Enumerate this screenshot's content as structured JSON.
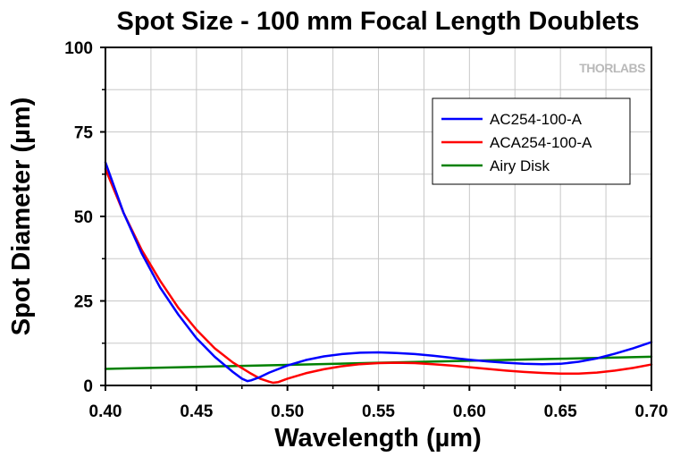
{
  "chart_data": {
    "type": "line",
    "title": "Spot Size - 100 mm Focal Length Doublets",
    "xlabel": "Wavelength (µm)",
    "ylabel": "Spot Diameter (µm)",
    "xlim": [
      0.4,
      0.7
    ],
    "ylim": [
      0,
      100
    ],
    "xticks": [
      "0.40",
      "0.45",
      "0.50",
      "0.55",
      "0.60",
      "0.65",
      "0.70"
    ],
    "yticks": [
      "0",
      "25",
      "50",
      "75",
      "100"
    ],
    "grid": true,
    "legend_position": "top-right",
    "watermark": "THORLABS",
    "series": [
      {
        "name": "AC254-100-A",
        "color": "#0000ff",
        "x": [
          0.4,
          0.41,
          0.42,
          0.43,
          0.44,
          0.45,
          0.46,
          0.47,
          0.475,
          0.478,
          0.48,
          0.485,
          0.49,
          0.5,
          0.51,
          0.52,
          0.53,
          0.54,
          0.55,
          0.56,
          0.57,
          0.58,
          0.59,
          0.6,
          0.61,
          0.62,
          0.63,
          0.64,
          0.65,
          0.66,
          0.67,
          0.68,
          0.69,
          0.7
        ],
        "y": [
          66,
          51,
          39,
          29,
          21,
          14,
          8.5,
          4,
          2,
          1.3,
          1.5,
          2.5,
          3.8,
          5.9,
          7.5,
          8.6,
          9.3,
          9.7,
          9.8,
          9.6,
          9.3,
          8.8,
          8.2,
          7.6,
          7.1,
          6.7,
          6.4,
          6.3,
          6.4,
          7.0,
          8.0,
          9.4,
          11.0,
          12.8
        ]
      },
      {
        "name": "ACA254-100-A",
        "color": "#ff0000",
        "x": [
          0.4,
          0.41,
          0.42,
          0.43,
          0.44,
          0.45,
          0.46,
          0.47,
          0.48,
          0.485,
          0.49,
          0.492,
          0.495,
          0.5,
          0.51,
          0.52,
          0.53,
          0.54,
          0.55,
          0.56,
          0.57,
          0.58,
          0.59,
          0.6,
          0.61,
          0.62,
          0.63,
          0.64,
          0.65,
          0.66,
          0.67,
          0.68,
          0.69,
          0.7
        ],
        "y": [
          64,
          51,
          40,
          31,
          23,
          16.5,
          11,
          6.8,
          3.5,
          2,
          1.1,
          0.8,
          1.0,
          2.0,
          3.6,
          4.8,
          5.7,
          6.3,
          6.6,
          6.7,
          6.6,
          6.3,
          5.9,
          5.4,
          4.9,
          4.4,
          4.0,
          3.7,
          3.5,
          3.5,
          3.8,
          4.4,
          5.2,
          6.2
        ]
      },
      {
        "name": "Airy Disk",
        "color": "#008000",
        "x": [
          0.4,
          0.45,
          0.5,
          0.55,
          0.6,
          0.65,
          0.7
        ],
        "y": [
          4.9,
          5.5,
          6.1,
          6.7,
          7.3,
          7.9,
          8.5
        ]
      }
    ]
  }
}
